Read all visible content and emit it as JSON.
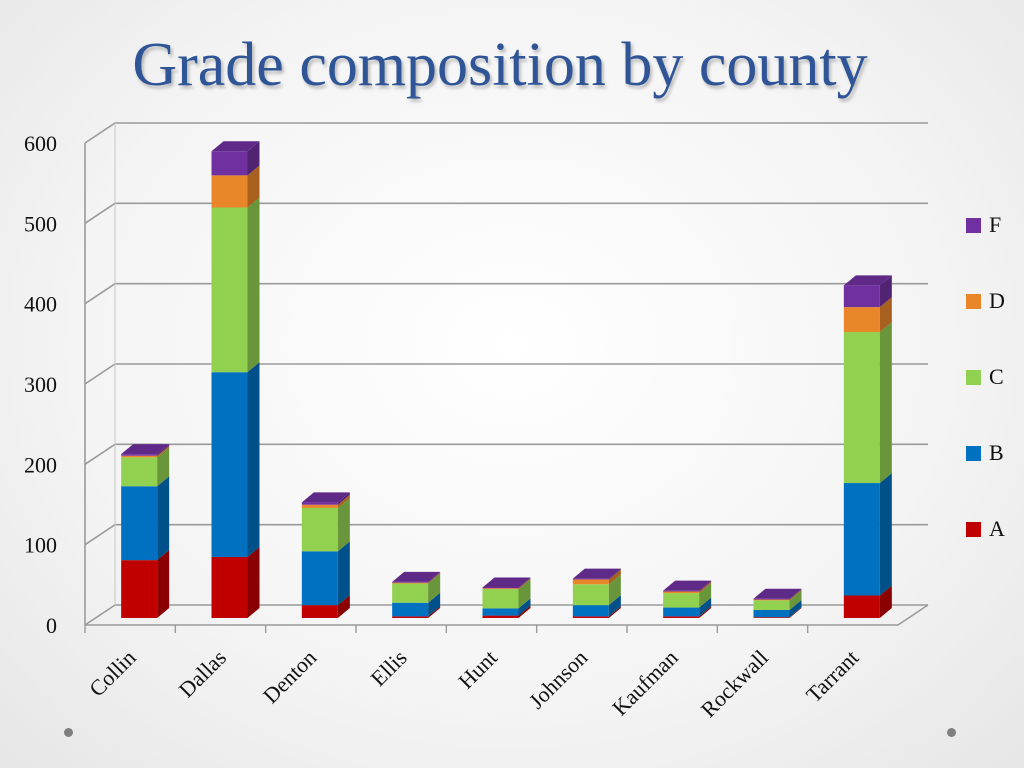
{
  "slide": {
    "title": "Grade composition by county"
  },
  "chart_data": {
    "type": "bar",
    "stacked": true,
    "three_d": true,
    "title": "Grade composition by county",
    "xlabel": "",
    "ylabel": "",
    "ylim": [
      0,
      600
    ],
    "yticks": [
      0,
      100,
      200,
      300,
      400,
      500,
      600
    ],
    "grid": true,
    "legend_position": "right",
    "categories": [
      "Collin",
      "Dallas",
      "Denton",
      "Ellis",
      "Hunt",
      "Johnson",
      "Kaufman",
      "Rockwall",
      "Tarrant"
    ],
    "series": [
      {
        "name": "A",
        "color": "#c00000",
        "values": [
          72,
          76,
          16,
          2,
          3,
          2,
          2,
          1,
          28
        ]
      },
      {
        "name": "B",
        "color": "#0070c0",
        "values": [
          92,
          230,
          67,
          17,
          9,
          14,
          11,
          9,
          140
        ]
      },
      {
        "name": "C",
        "color": "#92d050",
        "values": [
          36,
          205,
          54,
          24,
          24,
          26,
          18,
          12,
          188
        ]
      },
      {
        "name": "D",
        "color": "#e9862a",
        "values": [
          2,
          40,
          4,
          1,
          1,
          6,
          2,
          1,
          31
        ]
      },
      {
        "name": "F",
        "color": "#7030a0",
        "values": [
          2,
          30,
          3,
          1,
          1,
          1,
          1,
          1,
          27
        ]
      }
    ]
  }
}
